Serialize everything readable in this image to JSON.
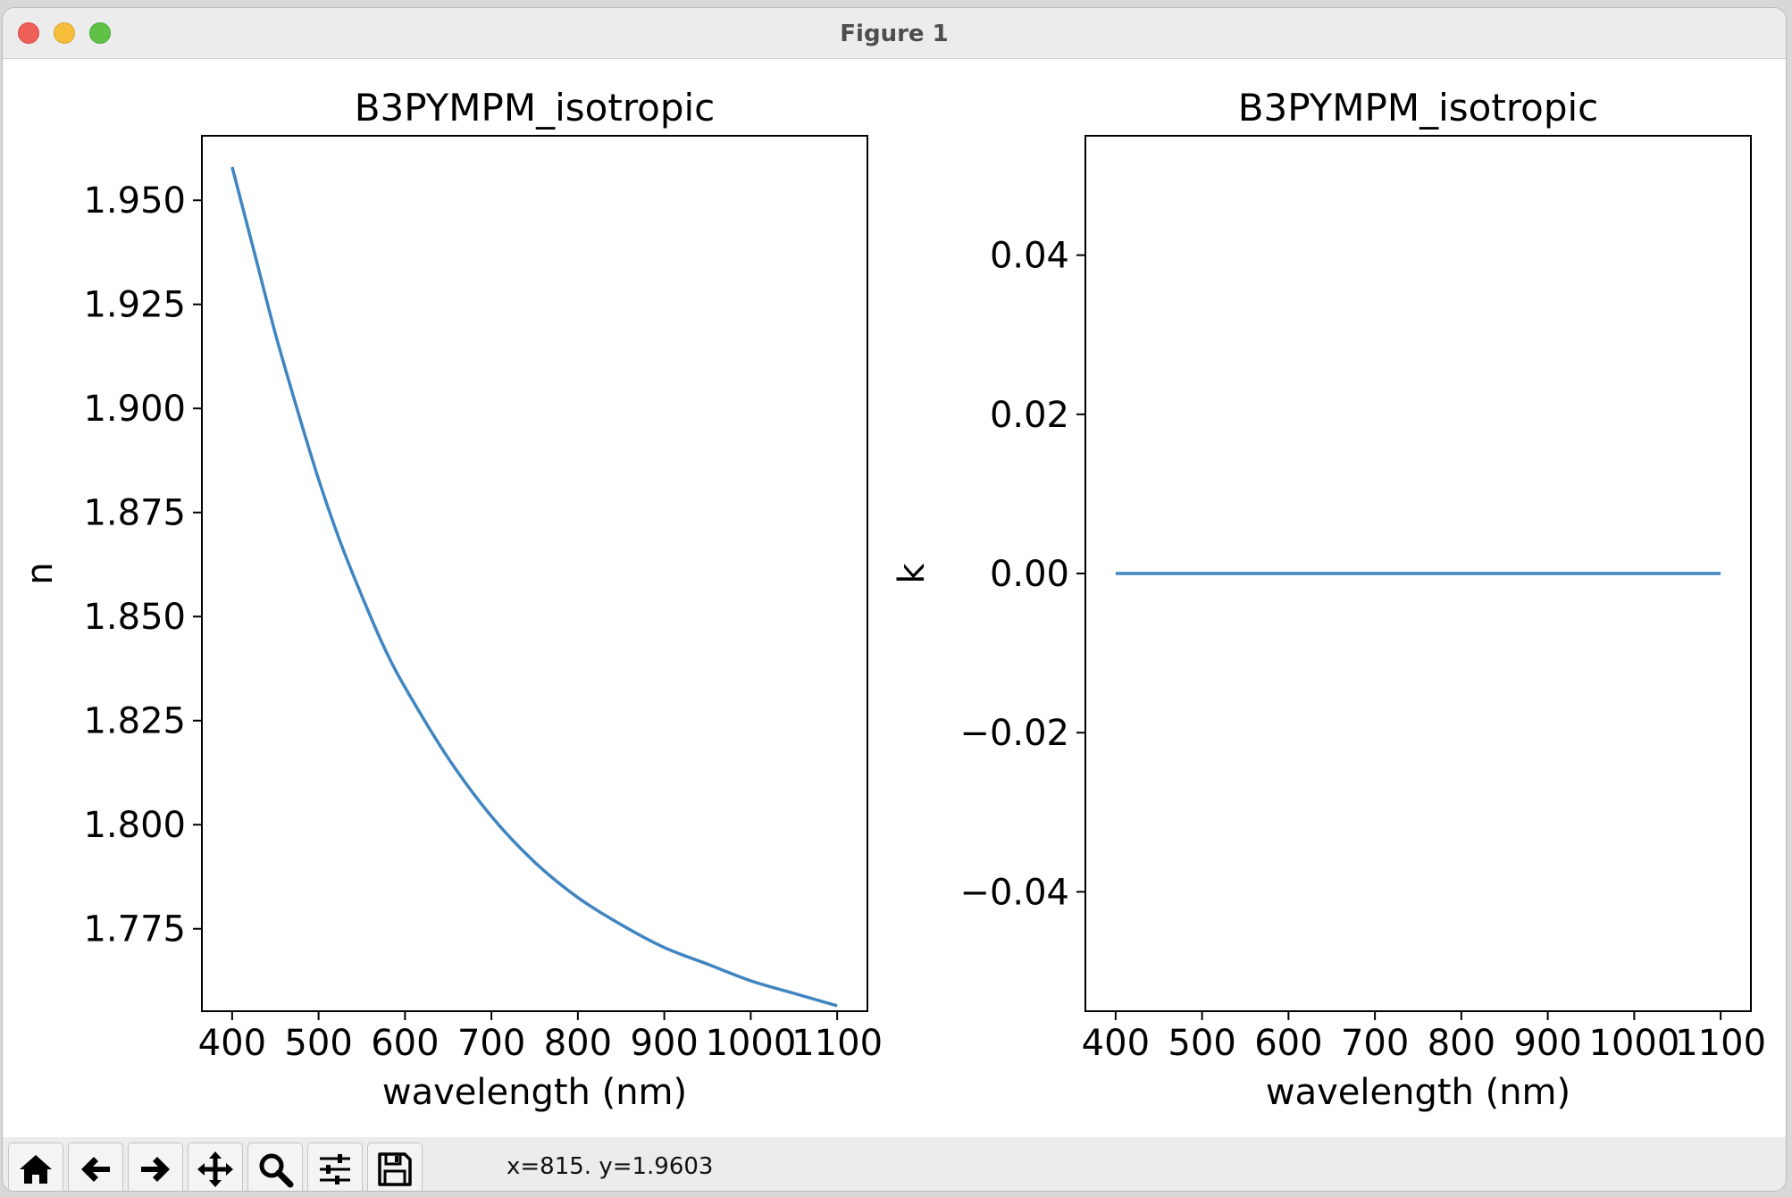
{
  "window": {
    "title": "Figure 1"
  },
  "toolbar": {
    "buttons": [
      {
        "icon": "home-icon",
        "label": "Home"
      },
      {
        "icon": "back-arrow-icon",
        "label": "Back"
      },
      {
        "icon": "forward-arrow-icon",
        "label": "Forward"
      },
      {
        "icon": "pan-icon",
        "label": "Pan"
      },
      {
        "icon": "zoom-icon",
        "label": "Zoom"
      },
      {
        "icon": "configure-subplots-icon",
        "label": "Configure subplots"
      },
      {
        "icon": "save-icon",
        "label": "Save"
      }
    ],
    "coords_readout": "x=815. y=1.9603"
  },
  "colors": {
    "line": "#3f85c1",
    "axes": "#000000",
    "background": "#ffffff"
  },
  "chart_data": [
    {
      "type": "line",
      "title": "B3PYMPM_isotropic",
      "xlabel": "wavelength (nm)",
      "ylabel": "n",
      "xlim": [
        365,
        1135
      ],
      "ylim": [
        1.7552,
        1.9655
      ],
      "xticks": [
        400,
        500,
        600,
        700,
        800,
        900,
        1000,
        1100
      ],
      "xtick_labels": [
        "400",
        "500",
        "600",
        "700",
        "800",
        "900",
        "1000",
        "1100"
      ],
      "yticks": [
        1.775,
        1.8,
        1.825,
        1.85,
        1.875,
        1.9,
        1.925,
        1.95
      ],
      "ytick_labels": [
        "1.775",
        "1.800",
        "1.825",
        "1.850",
        "1.875",
        "1.900",
        "1.925",
        "1.950"
      ],
      "grid": false,
      "series": [
        {
          "x": [
            400,
            425,
            450,
            475,
            500,
            525,
            550,
            575,
            600,
            650,
            700,
            750,
            800,
            850,
            900,
            950,
            1000,
            1050,
            1100
          ],
          "y": [
            1.958,
            1.938,
            1.918,
            1.9,
            1.883,
            1.868,
            1.855,
            1.843,
            1.833,
            1.816,
            1.802,
            1.791,
            1.7825,
            1.776,
            1.7705,
            1.7665,
            1.7625,
            1.7595,
            1.7565
          ]
        }
      ]
    },
    {
      "type": "line",
      "title": "B3PYMPM_isotropic",
      "xlabel": "wavelength (nm)",
      "ylabel": "k",
      "xlim": [
        365,
        1135
      ],
      "ylim": [
        -0.055,
        0.055
      ],
      "xticks": [
        400,
        500,
        600,
        700,
        800,
        900,
        1000,
        1100
      ],
      "xtick_labels": [
        "400",
        "500",
        "600",
        "700",
        "800",
        "900",
        "1000",
        "1100"
      ],
      "yticks": [
        -0.04,
        -0.02,
        0.0,
        0.02,
        0.04
      ],
      "ytick_labels": [
        "−0.04",
        "−0.02",
        "0.00",
        "0.02",
        "0.04"
      ],
      "grid": false,
      "series": [
        {
          "x": [
            400,
            1100
          ],
          "y": [
            0,
            0
          ]
        }
      ]
    }
  ]
}
